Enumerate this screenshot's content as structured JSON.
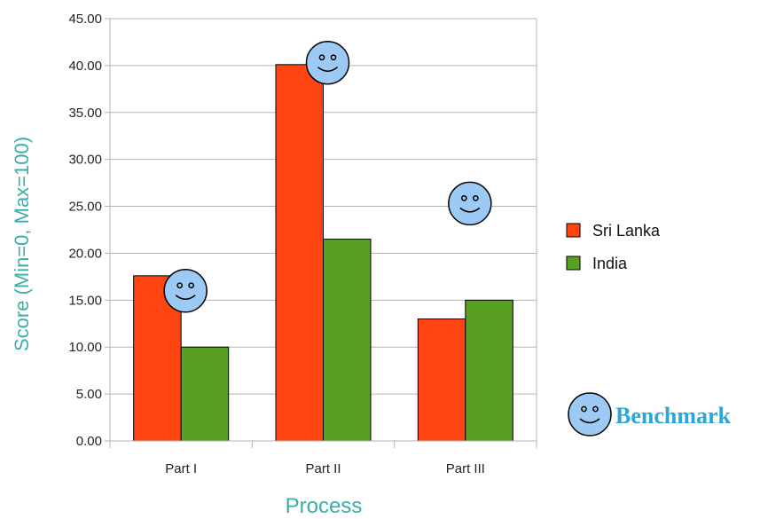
{
  "chart_data": {
    "type": "bar",
    "title": "",
    "xlabel": "Process",
    "ylabel": "Score (Min=0, Max=100)",
    "categories": [
      "Part I",
      "Part II",
      "Part III"
    ],
    "series": [
      {
        "name": "Sri Lanka",
        "values": [
          17.6,
          40.1,
          13.0
        ],
        "color": "#ff4411"
      },
      {
        "name": "India",
        "values": [
          10.0,
          21.5,
          15.0
        ],
        "color": "#58a021"
      }
    ],
    "ylim": [
      0,
      45
    ],
    "y_ticks": [
      "0.00",
      "5.00",
      "10.00",
      "15.00",
      "20.00",
      "25.00",
      "30.00",
      "35.00",
      "40.00",
      "45.00"
    ],
    "grid": true,
    "legend_position": "right",
    "benchmark": {
      "label": "Benchmark",
      "icon": "smiley-face-icon",
      "values": [
        16.0,
        40.3,
        25.3
      ]
    },
    "colors": {
      "axis_title": "#3aaea8",
      "benchmark_label": "#2aa7d8",
      "smiley_fill": "#9dc9f5"
    }
  }
}
